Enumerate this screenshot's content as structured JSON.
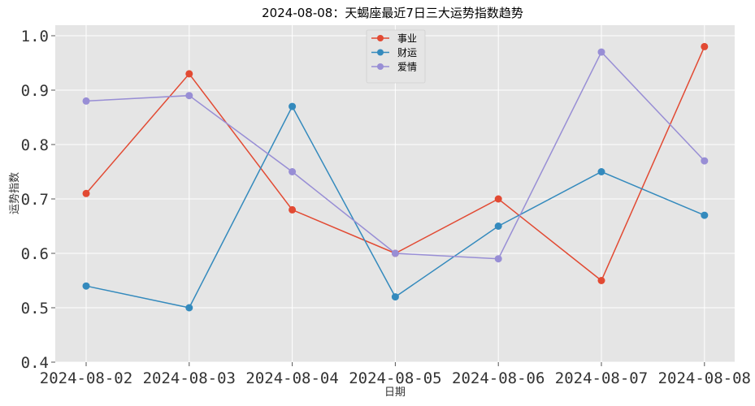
{
  "chart_data": {
    "type": "line",
    "title": "2024-08-08：天蝎座最近7日三大运势指数趋势",
    "xlabel": "日期",
    "ylabel": "运势指数",
    "categories": [
      "2024-08-02",
      "2024-08-03",
      "2024-08-04",
      "2024-08-05",
      "2024-08-06",
      "2024-08-07",
      "2024-08-08"
    ],
    "ylim": [
      0.4,
      1.0
    ],
    "yticks": [
      "0.4",
      "0.5",
      "0.6",
      "0.7",
      "0.8",
      "0.9",
      "1.0"
    ],
    "grid": true,
    "legend_position": "top-center",
    "series": [
      {
        "name": "事业",
        "color": "#E24A33",
        "values": [
          0.71,
          0.93,
          0.68,
          0.6,
          0.7,
          0.55,
          0.98
        ]
      },
      {
        "name": "财运",
        "color": "#348ABD",
        "values": [
          0.54,
          0.5,
          0.87,
          0.52,
          0.65,
          0.75,
          0.67
        ]
      },
      {
        "name": "爱情",
        "color": "#988ED5",
        "values": [
          0.88,
          0.89,
          0.75,
          0.6,
          0.59,
          0.97,
          0.77
        ]
      }
    ]
  }
}
